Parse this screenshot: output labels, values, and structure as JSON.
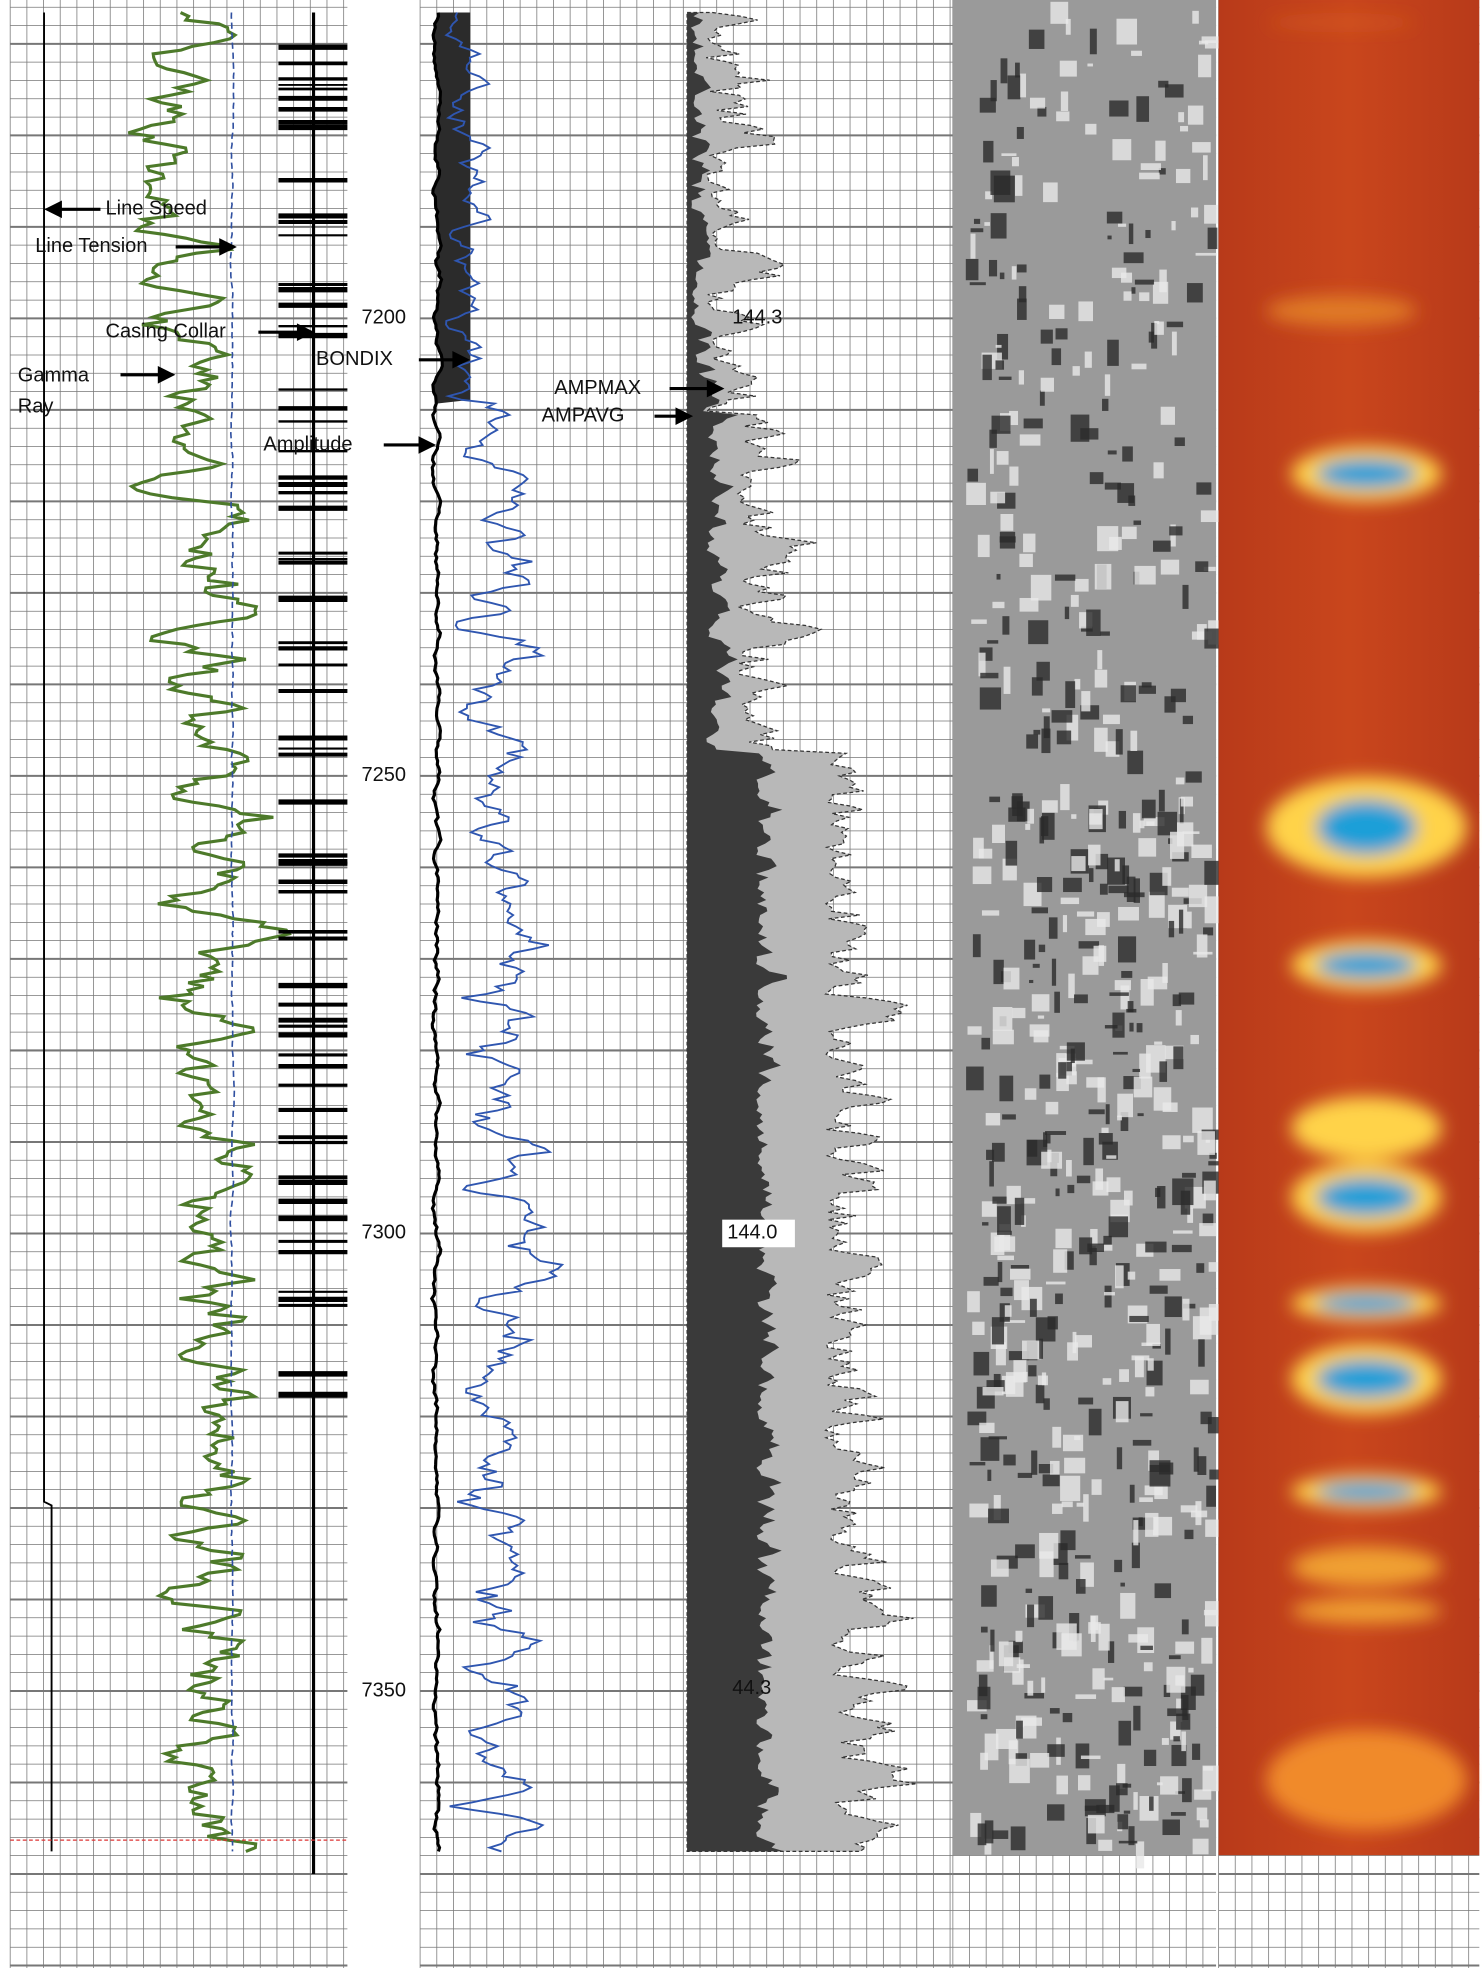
{
  "depth_track": {
    "labels": [
      7200,
      7250,
      7300,
      7350
    ]
  },
  "annotations": {
    "line_speed": "Line Speed",
    "line_tension": "Line Tension",
    "casing_collar": "Casing Collar",
    "gamma": "Gamma",
    "ray": "Ray",
    "amplitude": "Amplitude",
    "bondix": "BONDIX",
    "ampmax": "AMPMAX",
    "ampavg": "AMPAVG"
  },
  "value_labels": [
    "144.3",
    "144.0",
    "44.3"
  ]
}
